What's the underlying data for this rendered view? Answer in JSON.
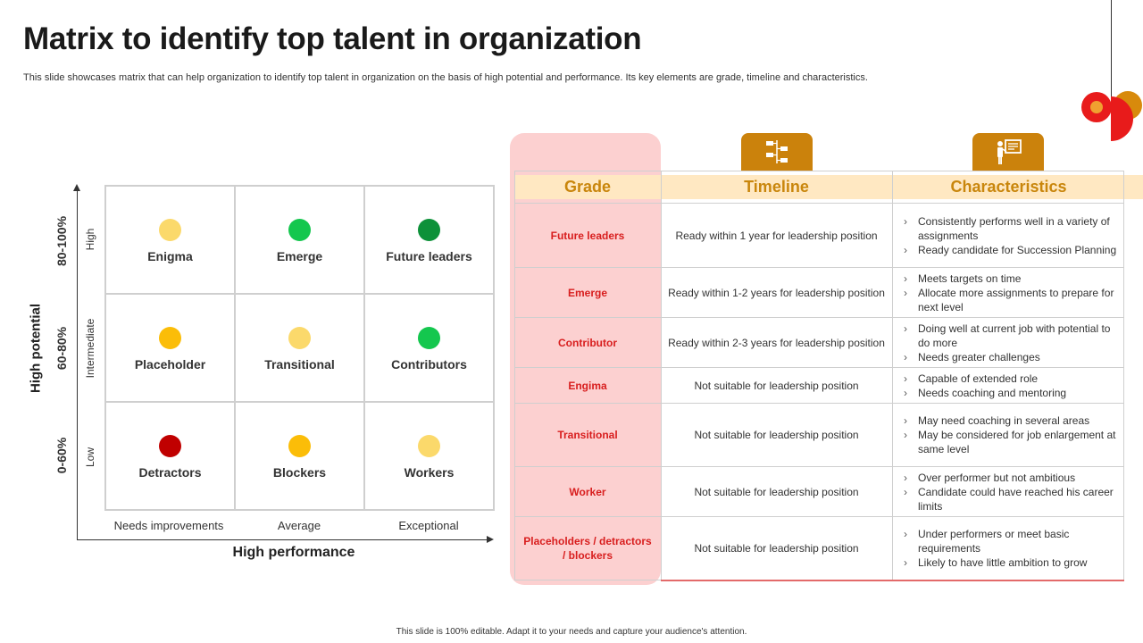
{
  "title": "Matrix to identify top talent in organization",
  "subtitle": "This slide showcases matrix that can help organization to identify top talent in organization on the basis of high potential and performance. Its key elements are grade, timeline and characteristics.",
  "footer": "This slide is 100% editable. Adapt it to your needs and capture your audience's attention.",
  "matrix": {
    "y_title": "High potential",
    "x_title": "High performance",
    "y_levels": [
      {
        "range": "80-100%",
        "label": "High"
      },
      {
        "range": "60-80%",
        "label": "Intermediate"
      },
      {
        "range": "0-60%",
        "label": "Low"
      }
    ],
    "x_levels": [
      "Needs improvements",
      "Average",
      "Exceptional"
    ],
    "cells": [
      {
        "label": "Enigma",
        "color": "#fbd96b"
      },
      {
        "label": "Emerge",
        "color": "#14c74e"
      },
      {
        "label": "Future leaders",
        "color": "#0d9139"
      },
      {
        "label": "Placeholder",
        "color": "#fbbd08"
      },
      {
        "label": "Transitional",
        "color": "#fbd96b"
      },
      {
        "label": "Contributors",
        "color": "#14c74e"
      },
      {
        "label": "Detractors",
        "color": "#c00000"
      },
      {
        "label": "Blockers",
        "color": "#fbbd08"
      },
      {
        "label": "Workers",
        "color": "#fbd96b"
      }
    ]
  },
  "table": {
    "headers": {
      "grade": "Grade",
      "timeline": "Timeline",
      "characteristics": "Characteristics"
    },
    "icons": {
      "timeline": "timeline-flow-icon",
      "characteristics": "presentation-board-icon"
    },
    "accent_color": "#cb820c",
    "rows": [
      {
        "grade": "Future leaders",
        "timeline": "Ready within 1 year for leadership position",
        "characteristics": [
          "Consistently performs well in a variety of assignments",
          "Ready candidate for Succession Planning"
        ]
      },
      {
        "grade": "Emerge",
        "timeline": "Ready within 1-2 years for leadership position",
        "characteristics": [
          "Meets targets on time",
          "Allocate more assignments to prepare for next level"
        ]
      },
      {
        "grade": "Contributor",
        "timeline": "Ready within 2-3 years for leadership position",
        "characteristics": [
          "Doing well at current job with potential to do more",
          "Needs greater challenges"
        ]
      },
      {
        "grade": "Engima",
        "timeline": "Not suitable for leadership position",
        "characteristics": [
          "Capable of extended role",
          "Needs coaching and mentoring"
        ]
      },
      {
        "grade": "Transitional",
        "timeline": "Not suitable for leadership position",
        "characteristics": [
          "May need coaching in several areas",
          "May be considered for job enlargement at same level"
        ]
      },
      {
        "grade": "Worker",
        "timeline": "Not suitable for leadership position",
        "characteristics": [
          "Over performer but not ambitious",
          "Candidate could have reached his career limits"
        ]
      },
      {
        "grade": "Placeholders / detractors / blockers",
        "timeline": "Not suitable for leadership position",
        "characteristics": [
          "Under performers or meet basic requirements",
          "Likely to have little ambition to grow"
        ]
      }
    ]
  }
}
